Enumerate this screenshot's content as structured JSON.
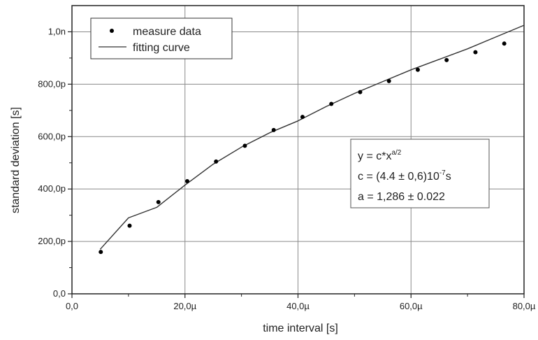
{
  "chart_data": {
    "type": "scatter",
    "xlabel": "time interval [s]",
    "ylabel": "standard deviation [s]",
    "xlim": [
      0,
      8e-05
    ],
    "ylim": [
      0,
      1.1e-09
    ],
    "x_ticks": [
      {
        "value": 0,
        "label": "0,0"
      },
      {
        "value": 2e-05,
        "label": "20,0µ"
      },
      {
        "value": 4e-05,
        "label": "40,0µ"
      },
      {
        "value": 6e-05,
        "label": "60,0µ"
      },
      {
        "value": 8e-05,
        "label": "80,0µ"
      }
    ],
    "y_ticks": [
      {
        "value": 0,
        "label": "0,0"
      },
      {
        "value": 2e-10,
        "label": "200,0p"
      },
      {
        "value": 4e-10,
        "label": "400,0p"
      },
      {
        "value": 6e-10,
        "label": "600,0p"
      },
      {
        "value": 8e-10,
        "label": "800,0p"
      },
      {
        "value": 1e-09,
        "label": "1,0n"
      }
    ],
    "grid": true,
    "legend_position": "top-left",
    "series": [
      {
        "name": "measure data",
        "kind": "scatter",
        "color": "#000000",
        "x": [
          5.1e-06,
          1.02e-05,
          1.53e-05,
          2.04e-05,
          2.55e-05,
          3.06e-05,
          3.57e-05,
          4.08e-05,
          4.59e-05,
          5.1e-05,
          5.61e-05,
          6.12e-05,
          6.63e-05,
          7.14e-05,
          7.65e-05
        ],
        "y": [
          1.6e-10,
          2.6e-10,
          3.5e-10,
          4.3e-10,
          5.05e-10,
          5.65e-10,
          6.25e-10,
          6.75e-10,
          7.25e-10,
          7.7e-10,
          8.12e-10,
          8.55e-10,
          8.92e-10,
          9.22e-10,
          9.55e-10
        ]
      },
      {
        "name": "fitting curve",
        "kind": "line",
        "color": "#333333",
        "x": [
          5e-06,
          1e-05,
          1.5e-05,
          2e-05,
          2.5e-05,
          3e-05,
          3.5e-05,
          4e-05,
          4.5e-05,
          5e-05,
          5.5e-05,
          6e-05,
          6.5e-05,
          7e-05,
          7.5e-05,
          8e-05
        ],
        "y": [
          1.7e-10,
          2.9e-10,
          3.3e-10,
          4.15e-10,
          4.95e-10,
          5.6e-10,
          6.15e-10,
          6.6e-10,
          7.15e-10,
          7.65e-10,
          8.1e-10,
          8.55e-10,
          8.95e-10,
          9.35e-10,
          9.8e-10,
          1.025e-09
        ]
      }
    ],
    "annotation": {
      "line1_base": "y = c*x",
      "line1_sup": "a/2",
      "line2_base": "c = (4.4 ± 0,6)10",
      "line2_sup": "-7",
      "line2_tail": "s",
      "line3": "a = 1,286 ± 0.022"
    }
  }
}
